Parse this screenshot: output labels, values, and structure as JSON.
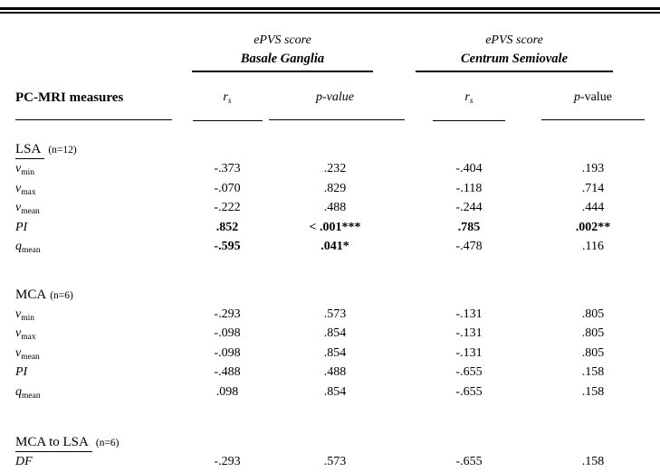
{
  "table": {
    "spanners": [
      {
        "line1": "ePVS score",
        "line2": "Basale Ganglia"
      },
      {
        "line1": "ePVS score",
        "line2": "Centrum Semiovale"
      }
    ],
    "header": {
      "measures": "PC-MRI measures",
      "cols": [
        {
          "base": "r",
          "sub": "s"
        },
        {
          "p": "p",
          "rest": "-value"
        },
        {
          "base": "r",
          "sub": "s"
        },
        {
          "p": "p",
          "rest": "-value"
        }
      ]
    },
    "sections": [
      {
        "title": "LSA",
        "n": "(n=12)",
        "rows": [
          {
            "base": "v",
            "sub": "min",
            "c": [
              "-.373",
              ".232",
              "-.404",
              ".193"
            ],
            "bold": [
              false,
              false,
              false,
              false
            ]
          },
          {
            "base": "v",
            "sub": "max",
            "c": [
              "-.070",
              ".829",
              "-.118",
              ".714"
            ],
            "bold": [
              false,
              false,
              false,
              false
            ]
          },
          {
            "base": "v",
            "sub": "mean",
            "c": [
              "-.222",
              ".488",
              "-.244",
              ".444"
            ],
            "bold": [
              false,
              false,
              false,
              false
            ]
          },
          {
            "base": "PI",
            "sub": "",
            "c": [
              ".852",
              "< .001***",
              ".785",
              ".002**"
            ],
            "bold": [
              true,
              true,
              true,
              true
            ]
          },
          {
            "base": "q",
            "sub": "mean",
            "c": [
              "-.595",
              ".041*",
              "-.478",
              ".116"
            ],
            "bold": [
              true,
              true,
              false,
              false
            ]
          }
        ]
      },
      {
        "title": "MCA",
        "n": "(n=6)",
        "rows": [
          {
            "base": "v",
            "sub": "min",
            "c": [
              "-.293",
              ".573",
              "-.131",
              ".805"
            ],
            "bold": [
              false,
              false,
              false,
              false
            ]
          },
          {
            "base": "v",
            "sub": "max",
            "c": [
              "-.098",
              ".854",
              "-.131",
              ".805"
            ],
            "bold": [
              false,
              false,
              false,
              false
            ]
          },
          {
            "base": "v",
            "sub": "mean",
            "c": [
              "-.098",
              ".854",
              "-.131",
              ".805"
            ],
            "bold": [
              false,
              false,
              false,
              false
            ]
          },
          {
            "base": "PI",
            "sub": "",
            "c": [
              "-.488",
              ".488",
              "-.655",
              ".158"
            ],
            "bold": [
              false,
              false,
              false,
              false
            ]
          },
          {
            "base": "q",
            "sub": "mean",
            "c": [
              ".098",
              ".854",
              "-.655",
              ".158"
            ],
            "bold": [
              false,
              false,
              false,
              false
            ]
          }
        ]
      },
      {
        "title": "MCA to LSA",
        "n": "(n=6)",
        "rows": [
          {
            "base": "DF",
            "sub": "",
            "c": [
              "-.293",
              ".573",
              "-.655",
              ".158"
            ],
            "bold": [
              false,
              false,
              false,
              false
            ]
          }
        ]
      }
    ]
  }
}
